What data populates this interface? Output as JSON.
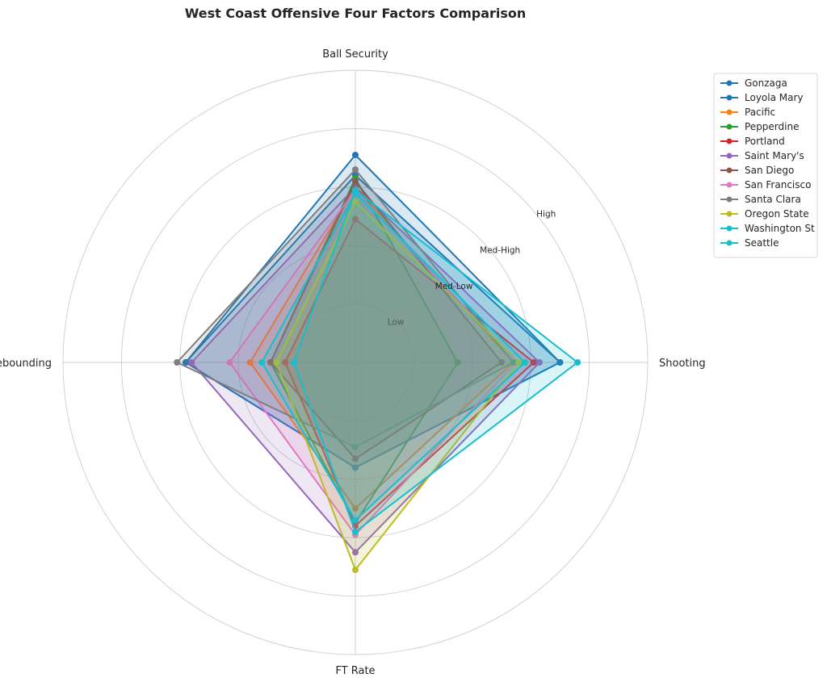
{
  "chart_data": {
    "type": "radar",
    "title": "West Coast Offensive Four Factors Comparison",
    "axes": [
      "Ball Security",
      "Shooting",
      "FT Rate",
      "Off Rebounding"
    ],
    "rings": [
      "Low",
      "Med-Low",
      "Med-High",
      "High"
    ],
    "range": [
      0,
      5
    ],
    "grid": true,
    "legend_position": "right",
    "series": [
      {
        "name": "Gonzaga",
        "color": "#1f77b4",
        "values": [
          3.2,
          3.5,
          1.8,
          2.9
        ]
      },
      {
        "name": "Loyola Mary",
        "color": "#1f77b4",
        "values": [
          3.55,
          3.5,
          1.8,
          2.9
        ]
      },
      {
        "name": "Pacific",
        "color": "#ff7f0e",
        "values": [
          3.0,
          2.7,
          2.5,
          1.8
        ]
      },
      {
        "name": "Pepperdine",
        "color": "#2ca02c",
        "values": [
          3.15,
          1.75,
          2.75,
          1.45
        ]
      },
      {
        "name": "Portland",
        "color": "#d62728",
        "values": [
          2.45,
          3.05,
          2.8,
          1.2
        ]
      },
      {
        "name": "Saint Mary's",
        "color": "#9467bd",
        "values": [
          3.0,
          3.15,
          3.25,
          2.8
        ]
      },
      {
        "name": "San Diego",
        "color": "#8c564b",
        "values": [
          3.1,
          2.5,
          1.65,
          1.45
        ]
      },
      {
        "name": "San Francisco",
        "color": "#e377c2",
        "values": [
          2.95,
          2.75,
          2.95,
          2.15
        ]
      },
      {
        "name": "Santa Clara",
        "color": "#7f7f7f",
        "values": [
          3.3,
          2.7,
          1.45,
          3.05
        ]
      },
      {
        "name": "Oregon State",
        "color": "#bcbd22",
        "values": [
          2.75,
          2.8,
          3.55,
          1.35
        ]
      },
      {
        "name": "Washington St",
        "color": "#17becf",
        "values": [
          2.9,
          2.9,
          2.7,
          1.6
        ]
      },
      {
        "name": "Seattle",
        "color": "#17becf",
        "values": [
          2.95,
          3.8,
          2.9,
          1.05
        ]
      }
    ]
  }
}
